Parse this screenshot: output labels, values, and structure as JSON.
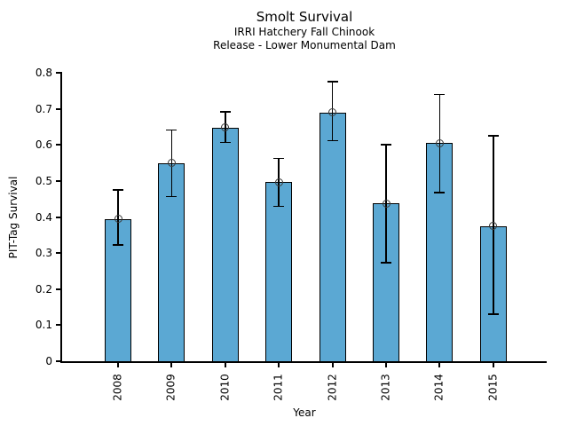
{
  "chart_data": {
    "type": "bar",
    "title": "Smolt Survival",
    "subtitle_line1": "IRRI Hatchery Fall Chinook",
    "subtitle_line2": "Release - Lower Monumental Dam",
    "xlabel": "Year",
    "ylabel": "PIT-Tag Survival",
    "categories": [
      "2008",
      "2009",
      "2010",
      "2011",
      "2012",
      "2013",
      "2014",
      "2015"
    ],
    "values": [
      0.395,
      0.55,
      0.648,
      0.497,
      0.69,
      0.437,
      0.605,
      0.375
    ],
    "error_low": [
      0.323,
      0.457,
      0.607,
      0.43,
      0.612,
      0.273,
      0.468,
      0.13
    ],
    "error_high": [
      0.475,
      0.641,
      0.692,
      0.562,
      0.776,
      0.6,
      0.74,
      0.625
    ],
    "ylim": [
      0,
      0.8
    ],
    "ytick_values": [
      0,
      0.1,
      0.2,
      0.3,
      0.4,
      0.5,
      0.6,
      0.7,
      0.8
    ],
    "ytick_labels": [
      "0",
      "0.1",
      "0.2",
      "0.3",
      "0.4",
      "0.5",
      "0.6",
      "0.7",
      "0.8"
    ],
    "grid": false,
    "legend": null,
    "marker": "open-circle",
    "colors": {
      "bar_fill": "#5BA8D3",
      "bar_edge": "#000000",
      "error_bar": "#000000",
      "marker_edge": "#3a3a3a",
      "axis": "#000000",
      "text": "#000000"
    }
  }
}
